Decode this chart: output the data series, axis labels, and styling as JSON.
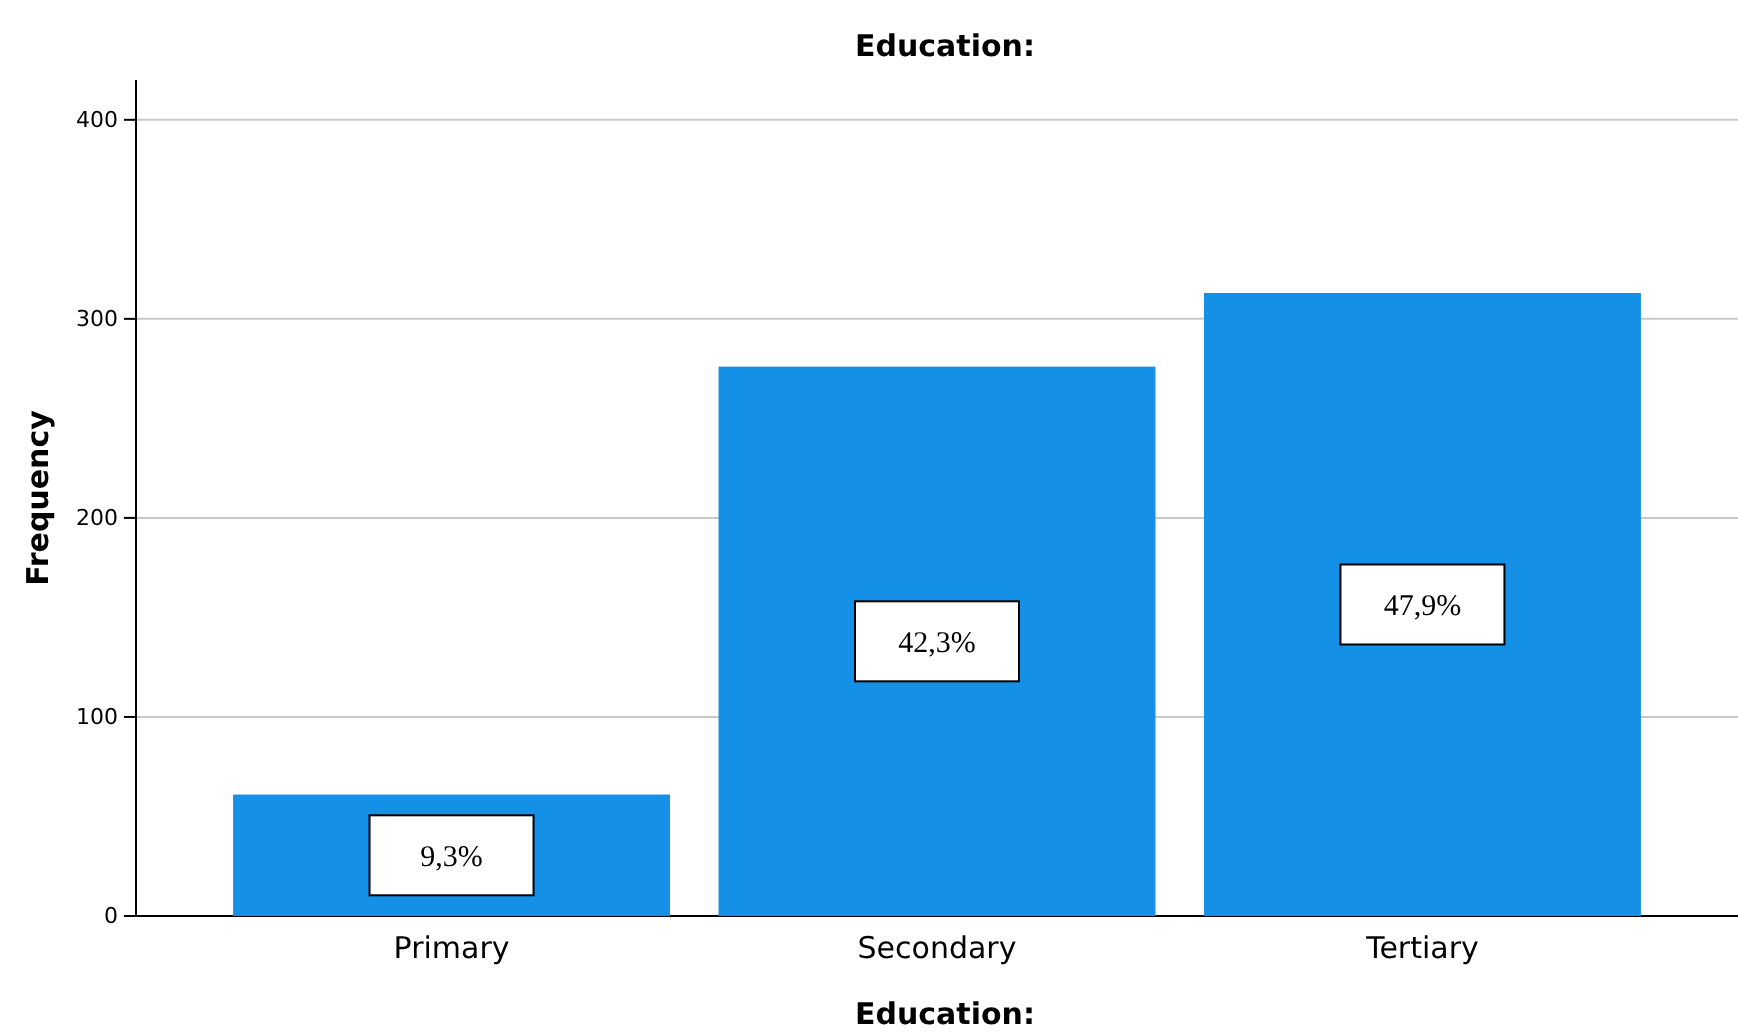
{
  "chart_data": {
    "type": "bar",
    "title": "Education:",
    "xlabel": "Education:",
    "ylabel": "Frequency",
    "categories": [
      "Primary",
      "Secondary",
      "Tertiary"
    ],
    "values": [
      61,
      276,
      313
    ],
    "color": "#1491e6",
    "annotations": [
      "9,3%",
      "42,3%",
      "47,9%"
    ],
    "ylim": [
      0,
      420
    ],
    "yticks": [
      0,
      100,
      200,
      300,
      400
    ],
    "grid": "y"
  }
}
